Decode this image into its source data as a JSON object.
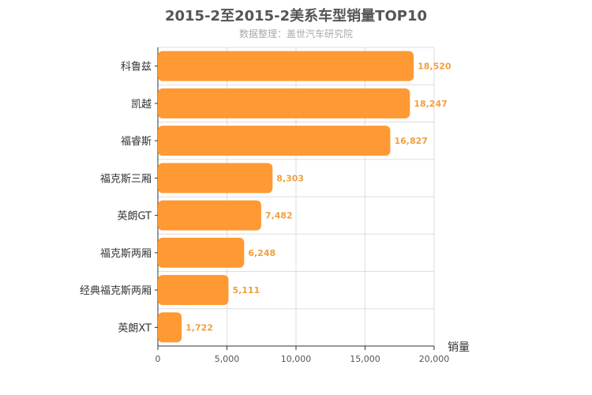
{
  "chart_data": {
    "type": "bar",
    "orientation": "horizontal",
    "title": "2015-2至2015-2美系车型销量TOP10",
    "subtitle": "数据整理：盖世汽车研究院",
    "categories": [
      "科鲁兹",
      "凯越",
      "福睿斯",
      "福克斯三厢",
      "英朗GT",
      "福克斯两厢",
      "经典福克斯两厢",
      "英朗XT"
    ],
    "values": [
      18520,
      18247,
      16827,
      8303,
      7482,
      6248,
      5111,
      1722
    ],
    "value_labels": [
      "18,520",
      "18,247",
      "16,827",
      "8,303",
      "7,482",
      "6,248",
      "5,111",
      "1,722"
    ],
    "xlabel": "销量",
    "xlim": [
      0,
      20000
    ],
    "xticks": [
      0,
      5000,
      10000,
      15000,
      20000
    ],
    "xtick_labels": [
      "0",
      "5,000",
      "10,000",
      "15,000",
      "20,000"
    ],
    "grid": true,
    "bar_color": "#ff9933",
    "label_color": "#f0a040"
  }
}
